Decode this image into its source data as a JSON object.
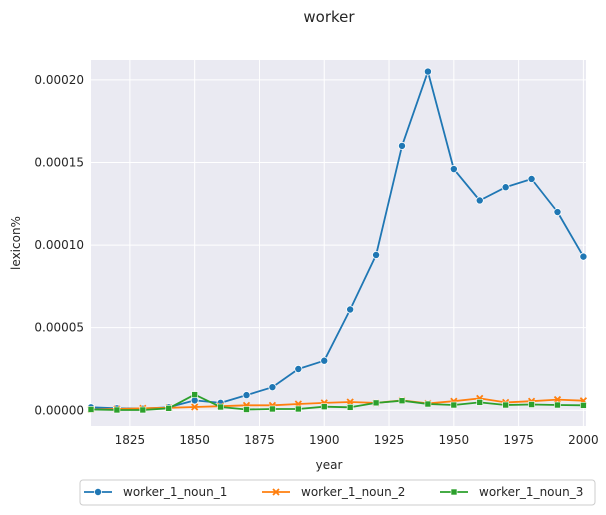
{
  "chart_data": {
    "type": "line",
    "title": "worker",
    "xlabel": "year",
    "ylabel": "lexicon%",
    "xlim": [
      1810,
      2001
    ],
    "ylim": [
      -9.5e-06,
      0.000212
    ],
    "xticks": [
      1825,
      1850,
      1875,
      1900,
      1925,
      1950,
      1975,
      2000
    ],
    "xtick_labels": [
      "1825",
      "1850",
      "1875",
      "1900",
      "1925",
      "1950",
      "1975",
      "2000"
    ],
    "yticks": [
      0,
      5e-05,
      0.0001,
      0.00015,
      0.0002
    ],
    "ytick_labels": [
      "0.00000",
      "0.00005",
      "0.00010",
      "0.00015",
      "0.00020"
    ],
    "grid": true,
    "legend_position": "bottom-center",
    "x": [
      1810,
      1820,
      1830,
      1840,
      1850,
      1860,
      1870,
      1880,
      1890,
      1900,
      1910,
      1920,
      1930,
      1940,
      1950,
      1960,
      1970,
      1980,
      1990,
      2000
    ],
    "series": [
      {
        "name": "worker_1_noun_1",
        "color": "#1f77b4",
        "marker": "circle",
        "values": [
          1.8e-06,
          1.2e-06,
          1e-06,
          1.8e-06,
          6e-06,
          4.5e-06,
          9.2e-06,
          1.4e-05,
          2.5e-05,
          3e-05,
          6.1e-05,
          9.4e-05,
          0.00016,
          0.000205,
          0.000146,
          0.000127,
          0.000135,
          0.00014,
          0.00012,
          9.3e-05
        ]
      },
      {
        "name": "worker_1_noun_2",
        "color": "#ff7f0e",
        "marker": "x",
        "values": [
          5e-07,
          8e-07,
          1.2e-06,
          1.5e-06,
          2e-06,
          2.5e-06,
          3e-06,
          3e-06,
          3.8e-06,
          4.5e-06,
          5e-06,
          4.5e-06,
          6e-06,
          4.2e-06,
          5.5e-06,
          7.2e-06,
          4.8e-06,
          5.5e-06,
          6.5e-06,
          5.8e-06
        ]
      },
      {
        "name": "worker_1_noun_3",
        "color": "#2ca02c",
        "marker": "square",
        "values": [
          5e-07,
          2e-07,
          2e-07,
          1.2e-06,
          9.5e-06,
          2e-06,
          5e-07,
          8e-07,
          8e-07,
          2.2e-06,
          1.8e-06,
          4.5e-06,
          5.8e-06,
          3.8e-06,
          3.2e-06,
          4.8e-06,
          3.2e-06,
          3.5e-06,
          3.2e-06,
          3e-06
        ]
      }
    ]
  }
}
